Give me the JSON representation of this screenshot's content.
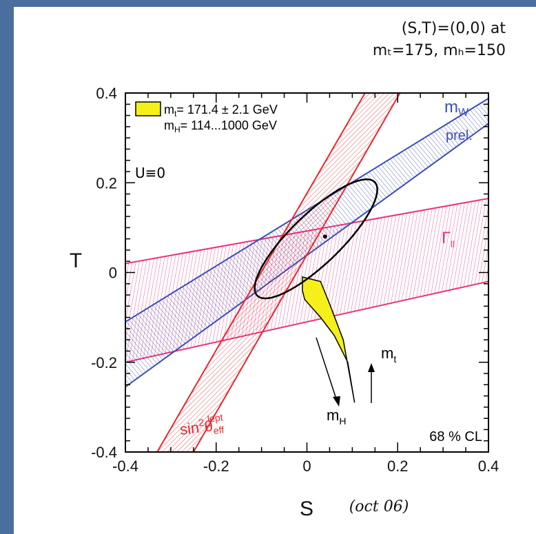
{
  "header": {
    "line1": "(S,T)=(0,0) at",
    "line2": "mₜ=175, mₕ=150"
  },
  "colors": {
    "frame_bg": "#4a6e9e",
    "sin2theta": "#e8262d",
    "mw": "#3a4db5",
    "gamma": "#e8317a",
    "ellipse": "#000000",
    "sm_fill": "#f5ef1a"
  },
  "chart_data": {
    "type": "contour",
    "xlabel": "S",
    "ylabel": "T",
    "xlim": [
      -0.4,
      0.4
    ],
    "ylim": [
      -0.4,
      0.4
    ],
    "xticks": [
      -0.4,
      -0.2,
      0,
      0.2,
      0.4
    ],
    "yticks": [
      -0.4,
      -0.2,
      0,
      0.2,
      0.4
    ],
    "xtick_labels": [
      "-0.4",
      "-0.2",
      "0",
      "0.2",
      "0.4"
    ],
    "ytick_labels": [
      "-0.4",
      "-0.2",
      "0",
      "0.2",
      "0.4"
    ],
    "bands": [
      {
        "name": "sin²θ_eff^lept",
        "label_main": "sin",
        "label_sup": "2",
        "label_theta": "θ",
        "label_sub": "eff",
        "label_sup2": "lept",
        "color": "#e8262d",
        "edge1": [
          [
            -0.33,
            -0.4
          ],
          [
            0.128,
            0.4
          ]
        ],
        "edge2": [
          [
            -0.25,
            -0.4
          ],
          [
            0.205,
            0.4
          ]
        ]
      },
      {
        "name": "m_W prel.",
        "label_main": "m",
        "label_sub": "W",
        "label_extra": "prel.",
        "color": "#3a4db5",
        "edge1": [
          [
            -0.4,
            -0.11
          ],
          [
            0.4,
            0.388
          ]
        ],
        "edge2": [
          [
            -0.4,
            -0.255
          ],
          [
            0.4,
            0.332
          ]
        ]
      },
      {
        "name": "Γ_ll",
        "label_main": "Γ",
        "label_sub": "ll",
        "color": "#e8317a",
        "edge1": [
          [
            -0.4,
            0.02
          ],
          [
            0.4,
            0.165
          ]
        ],
        "edge2": [
          [
            -0.4,
            -0.2
          ],
          [
            0.4,
            -0.02
          ]
        ]
      }
    ],
    "ellipse": {
      "center": [
        0.02,
        0.075
      ],
      "rx": 0.18,
      "ry": 0.055,
      "angle_deg": 44,
      "point": [
        0.04,
        0.08
      ],
      "color": "#000000"
    },
    "sm_region": {
      "points": [
        [
          -0.01,
          -0.01
        ],
        [
          0.03,
          -0.02
        ],
        [
          0.05,
          -0.07
        ],
        [
          0.08,
          -0.15
        ],
        [
          0.105,
          -0.29
        ],
        [
          0.09,
          -0.2
        ],
        [
          0.06,
          -0.14
        ],
        [
          0.03,
          -0.1
        ],
        [
          -0.005,
          -0.06
        ],
        [
          -0.01,
          -0.04
        ],
        [
          -0.01,
          -0.01
        ]
      ]
    },
    "legend": {
      "line1_m": "m",
      "line1_sub": "t",
      "line1_rest": "= 171.4 ± 2.1 GeV",
      "line2_m": "m",
      "line2_sub": "H",
      "line2_rest": "= 114...1000 GeV"
    },
    "annotations": {
      "u_constraint": "U≡0",
      "cl": "68 % CL",
      "mt_arrow_label_m": "m",
      "mt_arrow_label_sub": "t",
      "mh_arrow_label_m": "m",
      "mh_arrow_label_sub": "H",
      "handwritten": "(oct 06)"
    }
  }
}
